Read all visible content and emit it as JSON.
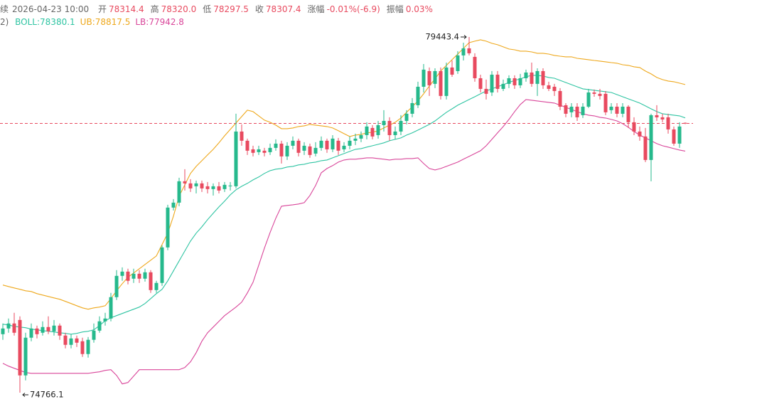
{
  "chart_data": {
    "type": "candlestick",
    "up_color": "#26b98c",
    "down_color": "#e84a5f",
    "header": {
      "symbol": "续",
      "time": "2026-04-23 10:00",
      "fields": [
        {
          "label": "开",
          "value": "78314.4"
        },
        {
          "label": "高",
          "value": "78320.0"
        },
        {
          "label": "低",
          "value": "78297.5"
        },
        {
          "label": "收",
          "value": "78307.4"
        },
        {
          "label": "涨幅",
          "value": "-0.01%(-6.9)"
        },
        {
          "label": "振幅",
          "value": "0.03%"
        }
      ]
    },
    "indicator_prefix": "2)",
    "annotations": [
      "79443.4",
      "74766.1"
    ],
    "open": [
      75535,
      75610,
      75676,
      75722,
      74993,
      75489,
      75610,
      75554,
      75629,
      75573,
      75648,
      75517,
      75395,
      75479,
      75442,
      75274,
      75461,
      75582,
      75704,
      75741,
      76022,
      76302,
      76358,
      76265,
      76330,
      76265,
      76349,
      76115,
      76209,
      76676,
      77200,
      77265,
      77546,
      77518,
      77480,
      77518,
      77480,
      77443,
      77480,
      77443,
      77480,
      77480,
      78200,
      78079,
      77966,
      77929,
      77948,
      77929,
      77985,
      78041,
      77873,
      78013,
      78079,
      77948,
      78004,
      77910,
      77985,
      78079,
      77966,
      78079,
      77966,
      78013,
      78079,
      78107,
      78153,
      78247,
      78153,
      78284,
      78340,
      78153,
      78200,
      78340,
      78434,
      78546,
      78789,
      78995,
      78827,
      78995,
      78668,
      79042,
      78995,
      79201,
      79294,
      79182,
      78901,
      78761,
      78714,
      78948,
      78761,
      78827,
      78901,
      78808,
      78901,
      78976,
      78827,
      78995,
      78808,
      78789,
      78733,
      78546,
      78453,
      78527,
      78415,
      78527,
      78714,
      78696,
      78696,
      78481,
      78527,
      78434,
      78527,
      78322,
      78200,
      78135,
      77826,
      78415,
      78387,
      78387,
      78228,
      78041,
      78314.4
    ],
    "high": [
      75676,
      75741,
      75816,
      75769,
      75554,
      75676,
      75648,
      75704,
      75769,
      75722,
      75676,
      75554,
      75535,
      75517,
      75489,
      75498,
      75676,
      75769,
      75816,
      76078,
      76377,
      76414,
      76396,
      76396,
      76377,
      76396,
      76377,
      76237,
      76704,
      77237,
      77312,
      77592,
      77705,
      77574,
      77555,
      77555,
      77536,
      77518,
      77536,
      77536,
      77536,
      78434,
      78294,
      78107,
      78013,
      78013,
      77985,
      78041,
      78097,
      78079,
      78060,
      78135,
      78107,
      78060,
      78041,
      78060,
      78135,
      78107,
      78153,
      78116,
      78060,
      78135,
      78172,
      78200,
      78322,
      78284,
      78340,
      78481,
      78387,
      78266,
      78415,
      78481,
      78640,
      78855,
      79088,
      79042,
      79032,
      79042,
      79107,
      79135,
      79257,
      79369,
      79443.4,
      79229,
      78948,
      78883,
      78995,
      78995,
      78883,
      78939,
      78939,
      78958,
      79014,
      79107,
      79032,
      79032,
      78855,
      78827,
      78771,
      78574,
      78574,
      78574,
      78574,
      78761,
      78752,
      78761,
      78733,
      78574,
      78574,
      78574,
      78546,
      78387,
      78266,
      78247,
      78434,
      78546,
      78434,
      78434,
      78266,
      78322,
      78320.0
    ],
    "low": [
      75461,
      75554,
      75517,
      74766.1,
      74928,
      75442,
      75479,
      75517,
      75535,
      75517,
      75461,
      75348,
      75348,
      75367,
      75236,
      75227,
      75423,
      75554,
      75648,
      75704,
      75984,
      76237,
      76190,
      76209,
      76209,
      76227,
      76078,
      76078,
      76171,
      76639,
      77162,
      77218,
      77424,
      77405,
      77387,
      77405,
      77387,
      77359,
      77387,
      77405,
      77424,
      77452,
      78013,
      77892,
      77873,
      77892,
      77873,
      77892,
      77948,
      77779,
      77826,
      77966,
      77873,
      77892,
      77854,
      77873,
      77948,
      77920,
      77929,
      77892,
      77929,
      77966,
      78023,
      78060,
      78097,
      78097,
      78107,
      78200,
      78079,
      78097,
      78153,
      78294,
      78387,
      78509,
      78714,
      78668,
      78771,
      78621,
      78621,
      78920,
      78958,
      79135,
      79201,
      78855,
      78714,
      78621,
      78668,
      78714,
      78733,
      78771,
      78761,
      78771,
      78855,
      78789,
      78668,
      78761,
      78733,
      78668,
      78481,
      78387,
      78387,
      78340,
      78378,
      78509,
      78658,
      78621,
      78415,
      78434,
      78387,
      78387,
      78247,
      78153,
      78079,
      77798,
      77546,
      78340,
      78322,
      78172,
      78013,
      77985,
      78297.5
    ],
    "close": [
      75610,
      75676,
      75554,
      74993,
      75489,
      75610,
      75535,
      75629,
      75573,
      75648,
      75517,
      75395,
      75479,
      75423,
      75274,
      75461,
      75582,
      75704,
      75741,
      76022,
      76302,
      76358,
      76237,
      76330,
      76265,
      76349,
      76115,
      76209,
      76676,
      77200,
      77265,
      77546,
      77518,
      77452,
      77518,
      77452,
      77443,
      77480,
      77424,
      77499,
      77490,
      78200,
      78079,
      77948,
      77920,
      77966,
      77920,
      77985,
      78041,
      77873,
      78013,
      78079,
      77920,
      78013,
      77892,
      77985,
      78079,
      77966,
      78107,
      77948,
      78013,
      78079,
      78107,
      78153,
      78266,
      78135,
      78284,
      78340,
      78153,
      78200,
      78340,
      78434,
      78574,
      78789,
      79014,
      78808,
      78995,
      78668,
      79042,
      78948,
      79201,
      79294,
      79229,
      78901,
      78761,
      78696,
      78948,
      78761,
      78827,
      78901,
      78808,
      78901,
      78976,
      78827,
      78995,
      78808,
      78761,
      78733,
      78527,
      78434,
      78527,
      78387,
      78527,
      78714,
      78696,
      78668,
      78453,
      78527,
      78434,
      78527,
      78322,
      78200,
      78135,
      77826,
      78415,
      78387,
      78359,
      78228,
      78041,
      78266,
      78307.4
    ],
    "bands": [
      {
        "label": "BOLL:78380.1",
        "color": "#2ec4a2",
        "values": [
          75666,
          75657,
          75638,
          75629,
          75620,
          75601,
          75592,
          75582,
          75573,
          75564,
          75554,
          75545,
          75535,
          75545,
          75564,
          75573,
          75592,
          75648,
          75713,
          75751,
          75779,
          75807,
          75835,
          75863,
          75891,
          75938,
          76003,
          76068,
          76125,
          76237,
          76368,
          76499,
          76629,
          76760,
          76863,
          76947,
          77041,
          77125,
          77209,
          77284,
          77368,
          77434,
          77480,
          77518,
          77564,
          77602,
          77649,
          77686,
          77705,
          77714,
          77733,
          77742,
          77761,
          77770,
          77789,
          77798,
          77817,
          77826,
          77854,
          77882,
          77910,
          77938,
          77966,
          77976,
          77995,
          78013,
          78032,
          78051,
          78079,
          78097,
          78116,
          78153,
          78182,
          78219,
          78256,
          78294,
          78340,
          78397,
          78453,
          78499,
          78546,
          78584,
          78621,
          78658,
          78696,
          78733,
          78761,
          78789,
          78817,
          78845,
          78873,
          78892,
          78920,
          78939,
          78939,
          78930,
          78911,
          78901,
          78873,
          78845,
          78817,
          78789,
          78761,
          78752,
          78743,
          78733,
          78724,
          78714,
          78686,
          78658,
          78630,
          78602,
          78574,
          78537,
          78499,
          78462,
          78434,
          78425,
          78415,
          78406,
          78380.1
        ]
      },
      {
        "label": "UB:78817.5",
        "color": "#eea81c",
        "values": [
          76181,
          76162,
          76143,
          76125,
          76106,
          76096,
          76068,
          76050,
          76031,
          76012,
          75994,
          75966,
          75938,
          75909,
          75881,
          75863,
          75881,
          75891,
          75909,
          76003,
          76106,
          76199,
          76283,
          76340,
          76396,
          76452,
          76508,
          76564,
          76714,
          76863,
          77088,
          77350,
          77499,
          77649,
          77742,
          77817,
          77892,
          77966,
          78051,
          78144,
          78228,
          78312,
          78397,
          78481,
          78462,
          78406,
          78350,
          78322,
          78284,
          78238,
          78238,
          78247,
          78266,
          78275,
          78294,
          78284,
          78275,
          78266,
          78247,
          78210,
          78172,
          78135,
          78153,
          78163,
          78182,
          78191,
          78210,
          78247,
          78284,
          78322,
          78378,
          78453,
          78527,
          78602,
          78696,
          78799,
          78892,
          78995,
          79070,
          79145,
          79219,
          79294,
          79369,
          79388,
          79406,
          79388,
          79360,
          79341,
          79313,
          79285,
          79275,
          79257,
          79257,
          79247,
          79229,
          79229,
          79219,
          79201,
          79191,
          79182,
          79182,
          79163,
          79154,
          79145,
          79135,
          79126,
          79117,
          79107,
          79098,
          79079,
          79070,
          79051,
          79042,
          78995,
          78958,
          78911,
          78883,
          78864,
          78855,
          78836,
          78817.5
        ]
      },
      {
        "label": "LB:77942.8",
        "color": "#d9469a",
        "values": [
          75152,
          75115,
          75087,
          75059,
          75031,
          75021,
          75021,
          75021,
          75021,
          75021,
          75021,
          75021,
          75021,
          75021,
          75021,
          75021,
          75031,
          75040,
          75059,
          75068,
          74993,
          74881,
          74900,
          74984,
          75068,
          75068,
          75068,
          75068,
          75068,
          75068,
          75068,
          75068,
          75096,
          75171,
          75292,
          75442,
          75554,
          75629,
          75704,
          75779,
          75835,
          75891,
          75956,
          76078,
          76218,
          76442,
          76667,
          76873,
          77060,
          77218,
          77228,
          77237,
          77247,
          77265,
          77359,
          77490,
          77658,
          77714,
          77752,
          77798,
          77826,
          77836,
          77836,
          77845,
          77854,
          77854,
          77845,
          77836,
          77826,
          77836,
          77836,
          77845,
          77845,
          77854,
          77779,
          77714,
          77695,
          77714,
          77742,
          77770,
          77798,
          77836,
          77873,
          77910,
          77948,
          78013,
          78097,
          78182,
          78266,
          78359,
          78462,
          78556,
          78621,
          78612,
          78602,
          78593,
          78584,
          78574,
          78546,
          78518,
          78490,
          78462,
          78434,
          78415,
          78406,
          78387,
          78378,
          78359,
          78340,
          78303,
          78256,
          78200,
          78153,
          78116,
          78079,
          78041,
          78013,
          77995,
          77976,
          77957,
          77942.8
        ]
      }
    ]
  }
}
